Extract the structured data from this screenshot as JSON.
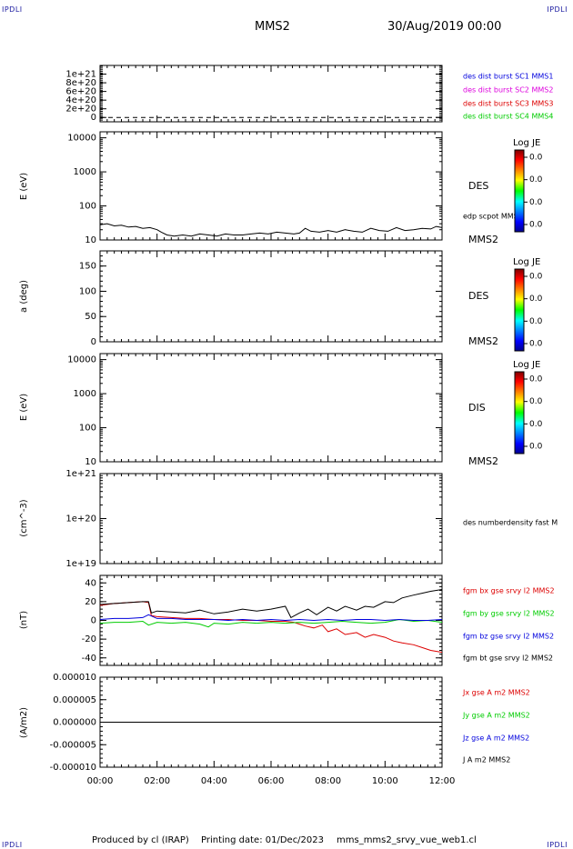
{
  "header": {
    "corner_label": "IPDLI",
    "spacecraft": "MMS2",
    "date_time": "30/Aug/2019 00:00"
  },
  "footer": {
    "produced_by": "Produced by cl (IRAP)",
    "printing_date": "Printing date: 01/Dec/2023",
    "filename": "mms_mms2_srvy_vue_web1.cl"
  },
  "colors": {
    "blue": "#0000dd",
    "magenta": "#dd00dd",
    "red": "#dd0000",
    "green": "#00cc00",
    "black": "#000000"
  },
  "chart_data": [
    {
      "type": "line",
      "ylabel": "",
      "ylim": [
        -1e+20,
        1.2e+21
      ],
      "yticks": [
        0,
        2e+20,
        4e+20,
        6e+20,
        8e+20,
        1e+21
      ],
      "yticklabels": [
        "0",
        "2e+20",
        "4e+20",
        "6e+20",
        "8e+20",
        "1e+21"
      ],
      "xlim": [
        0,
        12
      ],
      "legend_position": "right",
      "series": [
        {
          "name": "des dist burst SC1 MMS1",
          "color": "#0000dd",
          "values": []
        },
        {
          "name": "des dist burst SC2 MMS2",
          "color": "#dd00dd",
          "values": []
        },
        {
          "name": "des dist burst SC3 MMS3",
          "color": "#dd0000",
          "values": []
        },
        {
          "name": "des dist burst SC4 MMS4",
          "color": "#00cc00",
          "values": []
        }
      ],
      "annotations": [
        {
          "type": "hline",
          "y": 0,
          "style": "dashed"
        }
      ]
    },
    {
      "type": "line",
      "ylabel": "E (eV)",
      "yscale": "log",
      "ylim": [
        10,
        15000
      ],
      "yticks": [
        10,
        100,
        1000,
        10000
      ],
      "yticklabels": [
        "10",
        "100",
        "1000",
        "10000"
      ],
      "xlim": [
        0,
        12
      ],
      "series": [
        {
          "name": "edp scpot MMS2",
          "color": "#000000",
          "x": [
            0,
            0.25,
            0.5,
            0.75,
            1.0,
            1.25,
            1.5,
            1.75,
            2.0,
            2.15,
            2.35,
            2.6,
            2.9,
            3.2,
            3.5,
            3.8,
            4.1,
            4.4,
            4.7,
            5.0,
            5.3,
            5.6,
            5.9,
            6.2,
            6.5,
            6.8,
            7.0,
            7.2,
            7.4,
            7.7,
            8.0,
            8.3,
            8.6,
            8.9,
            9.2,
            9.5,
            9.8,
            10.1,
            10.4,
            10.7,
            11.0,
            11.3,
            11.6,
            11.8,
            12.0
          ],
          "values": [
            28,
            30,
            26,
            27,
            24,
            25,
            22,
            23,
            20,
            17,
            14,
            13,
            14,
            13,
            15,
            14,
            13,
            15,
            14,
            14,
            15,
            16,
            15,
            17,
            16,
            15,
            16,
            22,
            18,
            17,
            19,
            17,
            20,
            18,
            17,
            22,
            19,
            18,
            23,
            19,
            20,
            22,
            21,
            25,
            23
          ]
        }
      ],
      "colorbar": {
        "title": "Log JE",
        "ticks": [
          "0.0",
          "0.0",
          "0.0",
          "0.0"
        ]
      },
      "right_labels": [
        "DES",
        "edp scpot MMS2",
        "MMS2"
      ]
    },
    {
      "type": "heatmap",
      "ylabel": "a (deg)",
      "ylim": [
        0,
        180
      ],
      "yticks": [
        0,
        50,
        100,
        150
      ],
      "yticklabels": [
        "0",
        "50",
        "100",
        "150"
      ],
      "xlim": [
        0,
        12
      ],
      "colorbar": {
        "title": "Log JE",
        "ticks": [
          "0.0",
          "0.0",
          "0.0",
          "0.0"
        ]
      },
      "right_labels": [
        "DES",
        "MMS2"
      ]
    },
    {
      "type": "heatmap",
      "ylabel": "E (eV)",
      "yscale": "log",
      "ylim": [
        10,
        15000
      ],
      "yticks": [
        10,
        100,
        1000,
        10000
      ],
      "yticklabels": [
        "10",
        "100",
        "1000",
        "10000"
      ],
      "xlim": [
        0,
        12
      ],
      "colorbar": {
        "title": "Log JE",
        "ticks": [
          "0.0",
          "0.0",
          "0.0",
          "0.0"
        ]
      },
      "right_labels": [
        "DIS",
        "MMS2"
      ]
    },
    {
      "type": "line",
      "ylabel": "(cm^-3)",
      "yscale": "log",
      "ylim": [
        1e+19,
        1e+21
      ],
      "yticks": [
        1e+19,
        1e+20,
        1e+21
      ],
      "yticklabels": [
        "1e+19",
        "1e+20",
        "1e+21"
      ],
      "xlim": [
        0,
        12
      ],
      "series": [
        {
          "name": "des numberdensity fast M",
          "color": "#000000",
          "values": []
        }
      ]
    },
    {
      "type": "line",
      "ylabel": "(nT)",
      "ylim": [
        -48,
        48
      ],
      "yticks": [
        -40,
        -20,
        0,
        20,
        40
      ],
      "yticklabels": [
        "-40",
        "-20",
        "0",
        "20",
        "40"
      ],
      "xlim": [
        0,
        12
      ],
      "legend_position": "right",
      "series": [
        {
          "name": "fgm bx gse srvy l2 MMS2",
          "color": "#dd0000",
          "x": [
            0,
            0.5,
            1.0,
            1.5,
            1.7,
            1.8,
            2.0,
            2.5,
            3.0,
            3.5,
            4.0,
            4.5,
            5.0,
            5.5,
            6.0,
            6.5,
            6.8,
            7.0,
            7.2,
            7.5,
            7.8,
            8.0,
            8.3,
            8.6,
            9.0,
            9.3,
            9.6,
            10.0,
            10.3,
            10.6,
            11.0,
            11.3,
            11.6,
            12.0
          ],
          "values": [
            16,
            18,
            19,
            20,
            19,
            5,
            4,
            3,
            2,
            2,
            1,
            1,
            0,
            0,
            -1,
            -1,
            -2,
            -4,
            -6,
            -8,
            -5,
            -12,
            -9,
            -15,
            -13,
            -18,
            -15,
            -18,
            -22,
            -24,
            -26,
            -29,
            -32,
            -34
          ]
        },
        {
          "name": "fgm by gse srvy l2 MMS2",
          "color": "#00cc00",
          "x": [
            0,
            0.5,
            1.0,
            1.5,
            1.7,
            2.0,
            2.5,
            3.0,
            3.5,
            3.8,
            4.0,
            4.5,
            5.0,
            5.5,
            6.0,
            6.5,
            7.0,
            7.5,
            8.0,
            8.5,
            9.0,
            9.5,
            10.0,
            10.5,
            11.0,
            11.5,
            12.0
          ],
          "values": [
            -3,
            -2,
            -2,
            -1,
            -5,
            -2,
            -3,
            -2,
            -4,
            -7,
            -3,
            -4,
            -2,
            -3,
            -2,
            -3,
            -2,
            -3,
            -2,
            -1,
            -2,
            -3,
            -2,
            1,
            -1,
            0,
            -2
          ]
        },
        {
          "name": "fgm bz gse srvy l2 MMS2",
          "color": "#0000dd",
          "x": [
            0,
            0.5,
            1.0,
            1.5,
            1.7,
            2.0,
            2.5,
            3.0,
            3.5,
            4.0,
            4.5,
            5.0,
            5.5,
            6.0,
            6.5,
            7.0,
            7.5,
            8.0,
            8.5,
            9.0,
            9.5,
            10.0,
            10.5,
            11.0,
            11.5,
            12.0
          ],
          "values": [
            1,
            2,
            2,
            3,
            6,
            2,
            2,
            1,
            1,
            1,
            0,
            1,
            0,
            1,
            0,
            1,
            0,
            1,
            0,
            1,
            1,
            0,
            1,
            0,
            0,
            1
          ]
        },
        {
          "name": "fgm bt gse srvy l2 MMS2",
          "color": "#000000",
          "x": [
            0,
            0.5,
            1.0,
            1.5,
            1.7,
            1.8,
            2.0,
            2.5,
            3.0,
            3.5,
            4.0,
            4.5,
            5.0,
            5.5,
            6.0,
            6.5,
            6.7,
            7.0,
            7.3,
            7.6,
            8.0,
            8.3,
            8.6,
            9.0,
            9.3,
            9.6,
            10.0,
            10.3,
            10.6,
            11.0,
            11.3,
            11.6,
            12.0
          ],
          "values": [
            17,
            18,
            19,
            20,
            20,
            8,
            10,
            9,
            8,
            11,
            7,
            9,
            12,
            10,
            12,
            15,
            3,
            8,
            12,
            6,
            14,
            10,
            15,
            11,
            15,
            14,
            20,
            19,
            24,
            27,
            29,
            31,
            33
          ]
        }
      ]
    },
    {
      "type": "line",
      "ylabel": "(A/m2)",
      "ylim": [
        -1e-05,
        1e-05
      ],
      "yticks": [
        -1e-05,
        -5e-06,
        0,
        5e-06,
        1e-05
      ],
      "yticklabels": [
        "-0.000010",
        "-0.000005",
        "0.000000",
        "0.000005",
        "0.000010"
      ],
      "xlim": [
        0,
        12
      ],
      "xticks": [
        0,
        2,
        4,
        6,
        8,
        10,
        12
      ],
      "xticklabels": [
        "00:00",
        "02:00",
        "04:00",
        "06:00",
        "08:00",
        "10:00",
        "12:00"
      ],
      "legend_position": "right",
      "series": [
        {
          "name": "Jx gse A m2 MMS2",
          "color": "#dd0000",
          "x": [
            0,
            12
          ],
          "values": [
            0,
            0
          ]
        },
        {
          "name": "Jy gse A m2 MMS2",
          "color": "#00cc00",
          "x": [
            0,
            12
          ],
          "values": [
            0,
            0
          ]
        },
        {
          "name": "Jz gse A m2 MMS2",
          "color": "#0000dd",
          "x": [
            0,
            12
          ],
          "values": [
            0,
            0
          ]
        },
        {
          "name": "J A m2 MMS2",
          "color": "#000000",
          "x": [
            0,
            12
          ],
          "values": [
            0,
            0
          ]
        }
      ]
    }
  ]
}
